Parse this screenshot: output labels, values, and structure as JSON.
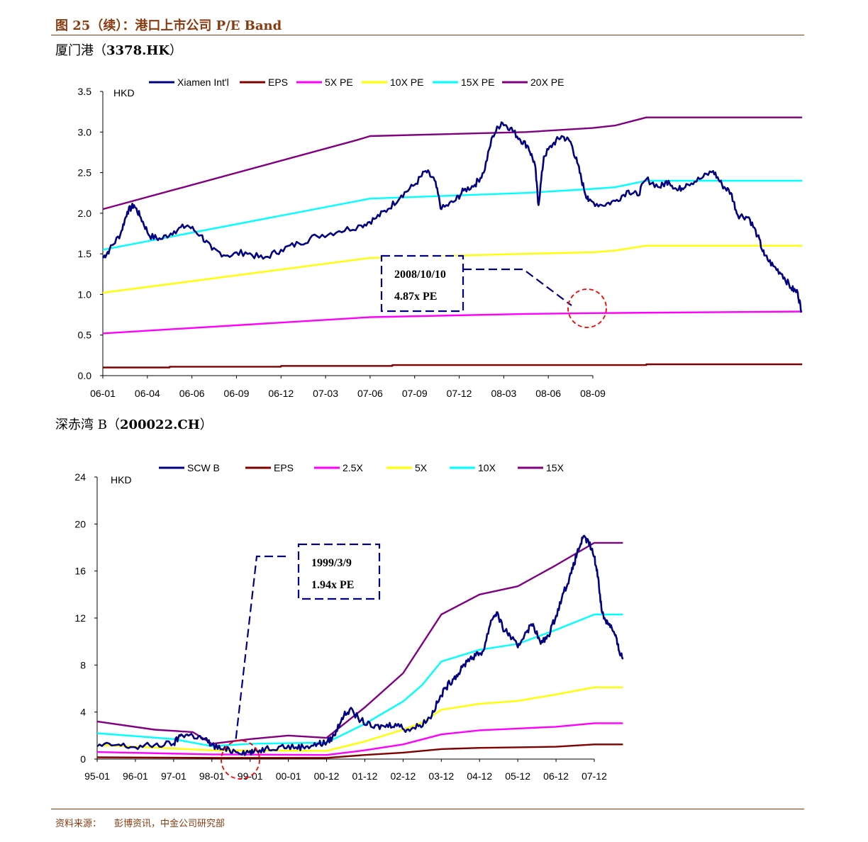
{
  "figure_title": "图 25（续）：港口上市公司 P/E Band",
  "footer": {
    "source_label": "资料来源：",
    "source_text": "彭博资讯，中金公司研究部"
  },
  "chart_data": [
    {
      "type": "line",
      "title_cn": "厦门港（",
      "title_code": "3378.HK",
      "title_end": "）",
      "ylabel": "HKD",
      "ylim": [
        0,
        3.5
      ],
      "yticks": [
        "3.5",
        "3.0",
        "2.5",
        "2.0",
        "1.5",
        "1.0",
        "0.5",
        "0.0"
      ],
      "xticks": [
        "06-01",
        "06-04",
        "06-06",
        "06-09",
        "06-12",
        "07-03",
        "07-06",
        "07-09",
        "07-12",
        "08-03",
        "08-06",
        "08-09"
      ],
      "legend_position": "top",
      "annotation": {
        "date": "2008/10/10",
        "pe": "4.87x PE"
      },
      "series": [
        {
          "name": "Xiamen Int'l",
          "color": "#000080",
          "price": true,
          "points": [
            [
              0,
              1.45
            ],
            [
              0.15,
              1.55
            ],
            [
              0.4,
              1.75
            ],
            [
              0.55,
              2.02
            ],
            [
              0.7,
              2.1
            ],
            [
              0.85,
              1.95
            ],
            [
              1.05,
              1.72
            ],
            [
              1.3,
              1.68
            ],
            [
              1.6,
              1.78
            ],
            [
              1.9,
              1.85
            ],
            [
              2.2,
              1.73
            ],
            [
              2.45,
              1.55
            ],
            [
              2.8,
              1.48
            ],
            [
              3.2,
              1.52
            ],
            [
              3.6,
              1.44
            ],
            [
              4.0,
              1.55
            ],
            [
              4.4,
              1.63
            ],
            [
              4.8,
              1.72
            ],
            [
              5.3,
              1.78
            ],
            [
              5.8,
              1.85
            ],
            [
              6.1,
              1.93
            ],
            [
              6.4,
              2.05
            ],
            [
              6.7,
              2.22
            ],
            [
              7.0,
              2.35
            ],
            [
              7.25,
              2.52
            ],
            [
              7.45,
              2.4
            ],
            [
              7.6,
              2.05
            ],
            [
              7.9,
              2.15
            ],
            [
              8.1,
              2.28
            ],
            [
              8.35,
              2.35
            ],
            [
              8.55,
              2.5
            ],
            [
              8.75,
              2.95
            ],
            [
              8.95,
              3.12
            ],
            [
              9.15,
              3.05
            ],
            [
              9.35,
              2.92
            ],
            [
              9.55,
              2.82
            ],
            [
              9.7,
              2.6
            ],
            [
              9.78,
              2.1
            ],
            [
              9.9,
              2.7
            ],
            [
              10.1,
              2.85
            ],
            [
              10.3,
              2.95
            ],
            [
              10.5,
              2.88
            ],
            [
              10.65,
              2.62
            ],
            [
              10.8,
              2.3
            ],
            [
              10.9,
              2.15
            ],
            [
              11.2,
              2.1
            ],
            [
              11.5,
              2.15
            ],
            [
              11.8,
              2.28
            ],
            [
              12.0,
              2.22
            ],
            [
              12.2,
              2.42
            ],
            [
              12.5,
              2.32
            ],
            [
              12.7,
              2.4
            ],
            [
              12.9,
              2.28
            ],
            [
              13.1,
              2.36
            ],
            [
              13.4,
              2.42
            ],
            [
              13.7,
              2.52
            ],
            [
              13.9,
              2.35
            ],
            [
              14.1,
              2.25
            ],
            [
              14.25,
              1.98
            ],
            [
              14.5,
              1.95
            ],
            [
              14.7,
              1.72
            ],
            [
              14.85,
              1.48
            ],
            [
              15.05,
              1.35
            ],
            [
              15.25,
              1.25
            ],
            [
              15.45,
              1.08
            ],
            [
              15.6,
              1.02
            ],
            [
              15.68,
              0.8
            ]
          ]
        },
        {
          "name": "EPS",
          "color": "#800000",
          "points": [
            [
              0,
              0.1
            ],
            [
              1.5,
              0.1
            ],
            [
              1.5,
              0.11
            ],
            [
              4,
              0.11
            ],
            [
              4,
              0.12
            ],
            [
              6.5,
              0.12
            ],
            [
              6.5,
              0.13
            ],
            [
              12.2,
              0.13
            ],
            [
              12.2,
              0.14
            ],
            [
              15.7,
              0.14
            ]
          ]
        },
        {
          "name": "5X PE",
          "color": "#ff00ff",
          "points": [
            [
              0,
              0.52
            ],
            [
              6.0,
              0.72
            ],
            [
              9.5,
              0.76
            ],
            [
              11.0,
              0.77
            ],
            [
              15.7,
              0.79
            ]
          ]
        },
        {
          "name": "10X PE",
          "color": "#ffff00",
          "points": [
            [
              0,
              1.02
            ],
            [
              6.0,
              1.45
            ],
            [
              9.5,
              1.5
            ],
            [
              11.0,
              1.52
            ],
            [
              11.5,
              1.54
            ],
            [
              12.2,
              1.6
            ],
            [
              15.7,
              1.6
            ]
          ]
        },
        {
          "name": "15X PE",
          "color": "#00ffff",
          "points": [
            [
              0,
              1.55
            ],
            [
              6.0,
              2.18
            ],
            [
              9.5,
              2.25
            ],
            [
              11.0,
              2.3
            ],
            [
              11.5,
              2.32
            ],
            [
              12.2,
              2.4
            ],
            [
              15.7,
              2.4
            ]
          ]
        },
        {
          "name": "20X PE",
          "color": "#800080",
          "points": [
            [
              0,
              2.05
            ],
            [
              5.7,
              2.9
            ],
            [
              6.0,
              2.95
            ],
            [
              9.5,
              3.0
            ],
            [
              11.0,
              3.05
            ],
            [
              11.5,
              3.08
            ],
            [
              12.2,
              3.18
            ],
            [
              15.7,
              3.18
            ]
          ]
        }
      ]
    },
    {
      "type": "line",
      "title_cn": "深赤湾 B（",
      "title_code": "200022.CH",
      "title_end": "）",
      "ylabel": "HKD",
      "ylim": [
        0,
        24
      ],
      "yticks": [
        "24",
        "20",
        "16",
        "12",
        "8",
        "4",
        "0"
      ],
      "xticks": [
        "95-01",
        "96-01",
        "97-01",
        "98-01",
        "99-01",
        "00-01",
        "00-12",
        "01-12",
        "02-12",
        "03-12",
        "04-12",
        "05-12",
        "06-12",
        "07-12"
      ],
      "legend_position": "top",
      "annotation": {
        "date": "1999/3/9",
        "pe": "1.94x PE"
      },
      "series": [
        {
          "name": "SCW B",
          "color": "#000080",
          "price": true,
          "points": [
            [
              0,
              1.1
            ],
            [
              0.5,
              1.2
            ],
            [
              1.0,
              1.0
            ],
            [
              1.5,
              1.2
            ],
            [
              2.0,
              1.3
            ],
            [
              2.2,
              2.1
            ],
            [
              2.5,
              2.0
            ],
            [
              2.8,
              1.7
            ],
            [
              3.0,
              1.2
            ],
            [
              3.3,
              0.8
            ],
            [
              3.6,
              0.7
            ],
            [
              3.9,
              0.6
            ],
            [
              4.1,
              0.6
            ],
            [
              4.4,
              0.9
            ],
            [
              4.8,
              1.1
            ],
            [
              5.2,
              1.0
            ],
            [
              5.5,
              1.1
            ],
            [
              5.8,
              1.3
            ],
            [
              6.0,
              1.4
            ],
            [
              6.2,
              2.0
            ],
            [
              6.4,
              3.5
            ],
            [
              6.6,
              4.2
            ],
            [
              6.9,
              3.3
            ],
            [
              7.2,
              2.7
            ],
            [
              7.5,
              2.8
            ],
            [
              7.8,
              3.0
            ],
            [
              8.1,
              2.5
            ],
            [
              8.4,
              2.8
            ],
            [
              8.7,
              3.5
            ],
            [
              8.9,
              4.8
            ],
            [
              9.1,
              6.0
            ],
            [
              9.3,
              6.8
            ],
            [
              9.5,
              7.5
            ],
            [
              9.7,
              8.5
            ],
            [
              9.9,
              8.8
            ],
            [
              10.1,
              9.2
            ],
            [
              10.3,
              11.8
            ],
            [
              10.45,
              12.5
            ],
            [
              10.6,
              11.2
            ],
            [
              10.8,
              10.5
            ],
            [
              11.0,
              9.5
            ],
            [
              11.2,
              10.8
            ],
            [
              11.4,
              11.5
            ],
            [
              11.6,
              9.8
            ],
            [
              11.8,
              10.5
            ],
            [
              12.0,
              12.2
            ],
            [
              12.2,
              14.2
            ],
            [
              12.4,
              15.8
            ],
            [
              12.55,
              17.5
            ],
            [
              12.7,
              18.8
            ],
            [
              12.85,
              18.5
            ],
            [
              13.0,
              17.2
            ],
            [
              13.1,
              15.5
            ],
            [
              13.2,
              12.5
            ],
            [
              13.3,
              11.8
            ],
            [
              13.4,
              11.5
            ],
            [
              13.55,
              10.5
            ],
            [
              13.65,
              9.2
            ],
            [
              13.75,
              8.6
            ]
          ]
        },
        {
          "name": "EPS",
          "color": "#800000",
          "points": [
            [
              0,
              0.15
            ],
            [
              3.0,
              0.1
            ],
            [
              6.0,
              0.1
            ],
            [
              7.0,
              0.35
            ],
            [
              8.0,
              0.55
            ],
            [
              9.0,
              0.85
            ],
            [
              10.0,
              0.95
            ],
            [
              11.0,
              1.0
            ],
            [
              12.0,
              1.05
            ],
            [
              13.0,
              1.25
            ],
            [
              13.75,
              1.25
            ]
          ]
        },
        {
          "name": "2.5X",
          "color": "#ff00ff",
          "points": [
            [
              0,
              0.6
            ],
            [
              3.0,
              0.4
            ],
            [
              6.0,
              0.35
            ],
            [
              7.0,
              0.75
            ],
            [
              8.0,
              1.25
            ],
            [
              9.0,
              2.1
            ],
            [
              10.0,
              2.45
            ],
            [
              11.0,
              2.6
            ],
            [
              12.0,
              2.75
            ],
            [
              13.0,
              3.05
            ],
            [
              13.75,
              3.05
            ]
          ]
        },
        {
          "name": "5X",
          "color": "#ffff00",
          "points": [
            [
              0,
              1.2
            ],
            [
              2.0,
              0.9
            ],
            [
              3.0,
              0.75
            ],
            [
              6.0,
              0.7
            ],
            [
              7.0,
              1.5
            ],
            [
              8.0,
              2.5
            ],
            [
              8.5,
              3.1
            ],
            [
              9.0,
              4.2
            ],
            [
              10.0,
              4.7
            ],
            [
              11.0,
              4.95
            ],
            [
              12.0,
              5.5
            ],
            [
              13.0,
              6.1
            ],
            [
              13.75,
              6.1
            ]
          ]
        },
        {
          "name": "10X",
          "color": "#00ffff",
          "points": [
            [
              0,
              2.2
            ],
            [
              2.0,
              1.7
            ],
            [
              3.0,
              1.1
            ],
            [
              4.0,
              1.3
            ],
            [
              6.0,
              1.4
            ],
            [
              7.0,
              3.0
            ],
            [
              8.0,
              4.9
            ],
            [
              8.5,
              6.3
            ],
            [
              9.0,
              8.3
            ],
            [
              10.0,
              9.3
            ],
            [
              11.0,
              9.8
            ],
            [
              12.0,
              11.0
            ],
            [
              13.0,
              12.3
            ],
            [
              13.75,
              12.3
            ]
          ]
        },
        {
          "name": "15X",
          "color": "#800080",
          "points": [
            [
              0,
              3.2
            ],
            [
              1.5,
              2.5
            ],
            [
              2.5,
              2.3
            ],
            [
              3.0,
              1.3
            ],
            [
              4.0,
              1.7
            ],
            [
              5.0,
              2.0
            ],
            [
              6.0,
              1.8
            ],
            [
              7.0,
              4.4
            ],
            [
              8.0,
              7.3
            ],
            [
              9.0,
              12.3
            ],
            [
              10.0,
              14.0
            ],
            [
              11.0,
              14.7
            ],
            [
              12.0,
              16.5
            ],
            [
              13.0,
              18.4
            ],
            [
              13.75,
              18.4
            ]
          ]
        }
      ]
    }
  ]
}
